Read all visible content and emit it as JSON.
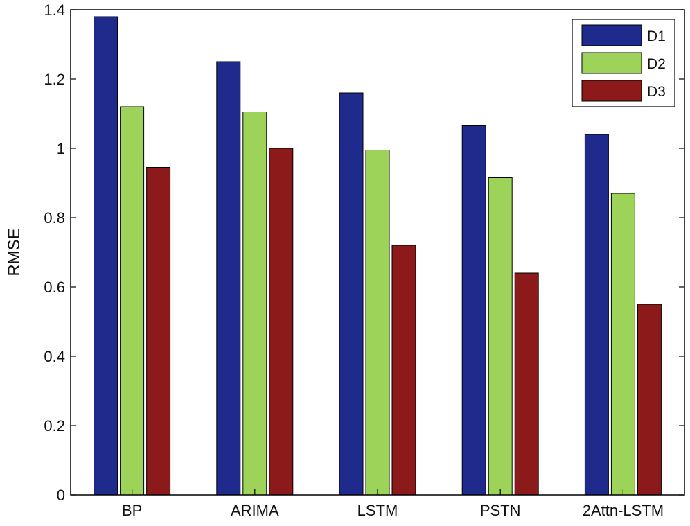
{
  "chart_data": {
    "type": "bar",
    "title": "",
    "xlabel": "",
    "ylabel": "RMSE",
    "ylim": [
      0,
      1.4
    ],
    "yticks": [
      0,
      0.2,
      0.4,
      0.6,
      0.8,
      1,
      1.2,
      1.4
    ],
    "ytick_labels": [
      "0",
      "0.2",
      "0.4",
      "0.6",
      "0.8",
      "1",
      "1.2",
      "1.4"
    ],
    "categories": [
      "BP",
      "ARIMA",
      "LSTM",
      "PSTN",
      "2Attn-LSTM"
    ],
    "series": [
      {
        "name": "D1",
        "color": "#1e2a8c",
        "values": [
          1.38,
          1.25,
          1.16,
          1.065,
          1.04
        ]
      },
      {
        "name": "D2",
        "color": "#9ed35a",
        "values": [
          1.12,
          1.105,
          0.995,
          0.915,
          0.87
        ]
      },
      {
        "name": "D3",
        "color": "#8c1a1a",
        "values": [
          0.945,
          1.0,
          0.72,
          0.64,
          0.55
        ]
      }
    ],
    "grid": false,
    "legend_position": "top-right"
  }
}
